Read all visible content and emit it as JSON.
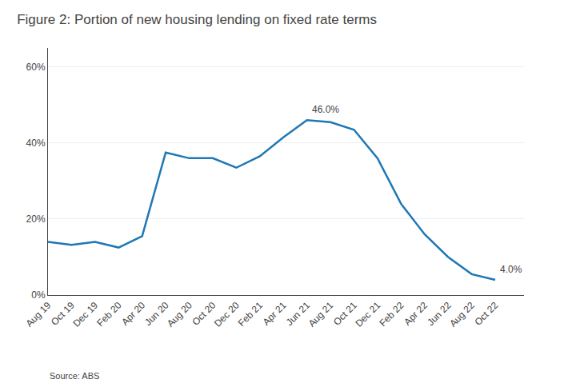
{
  "chart_data": {
    "type": "line",
    "title": "Figure 2: Portion of new housing lending on fixed rate terms",
    "source": "Source: ABS",
    "categories": [
      "Aug 19",
      "Oct 19",
      "Dec 19",
      "Feb 20",
      "Apr 20",
      "Jun 20",
      "Aug 20",
      "Oct 20",
      "Dec 20",
      "Feb 21",
      "Apr 21",
      "Jun 21",
      "Aug 21",
      "Oct 21",
      "Dec 21",
      "Feb 22",
      "Apr 22",
      "Jun 22",
      "Aug 22",
      "Oct 22"
    ],
    "values": [
      14.0,
      13.2,
      14.0,
      12.5,
      15.5,
      37.5,
      36.0,
      36.0,
      33.5,
      36.5,
      41.5,
      46.0,
      45.5,
      43.5,
      36.0,
      24.0,
      16.0,
      10.0,
      5.5,
      4.0
    ],
    "annotations": [
      {
        "text": "46.0%",
        "x": "Jun 21",
        "y": 46.0
      },
      {
        "text": "4.0%",
        "x": "Oct 22",
        "y": 4.0
      }
    ],
    "ylim": [
      0,
      65
    ],
    "yticks": [
      {
        "value": 0,
        "label": "0%"
      },
      {
        "value": 20,
        "label": "20%"
      },
      {
        "value": 40,
        "label": "40%"
      },
      {
        "value": 60,
        "label": "60%"
      }
    ],
    "grid": true
  }
}
